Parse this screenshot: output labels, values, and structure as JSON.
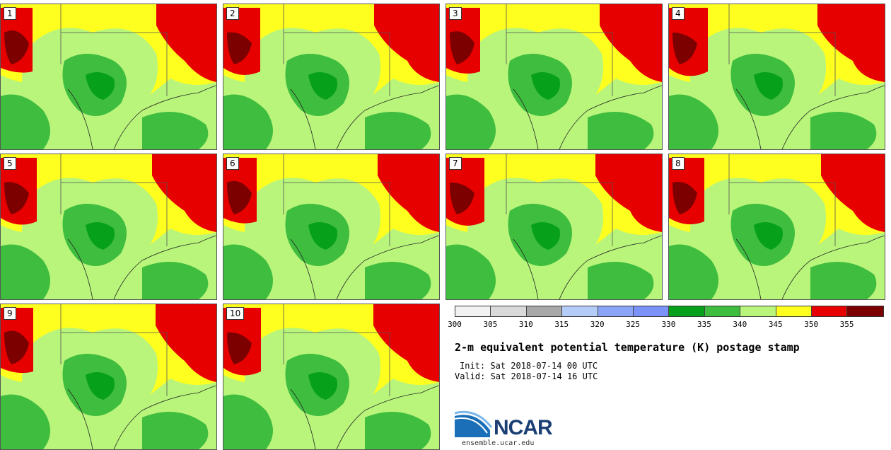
{
  "panels": [
    {
      "label": "1"
    },
    {
      "label": "2"
    },
    {
      "label": "3"
    },
    {
      "label": "4"
    },
    {
      "label": "5"
    },
    {
      "label": "6"
    },
    {
      "label": "7"
    },
    {
      "label": "8"
    },
    {
      "label": "9"
    },
    {
      "label": "10"
    }
  ],
  "colorbar": {
    "ticks": [
      "300",
      "305",
      "310",
      "315",
      "320",
      "325",
      "330",
      "335",
      "340",
      "345",
      "350",
      "355"
    ],
    "colors": [
      "#f2f2f2",
      "#d9d9d9",
      "#a8a8a8",
      "#b4ccf8",
      "#8aa4f8",
      "#7b93f8",
      "#07a01b",
      "#3fbd3f",
      "#b8f57a",
      "#ffff1f",
      "#e60000",
      "#7d0000"
    ]
  },
  "title": "2-m equivalent potential temperature (K) postage stamp",
  "init": "Init: Sat 2018-07-14 00 UTC",
  "valid": "Valid: Sat 2018-07-14 16 UTC",
  "logo": {
    "text": "NCAR",
    "url": "ensemble.ucar.edu"
  },
  "colors": {
    "red": "#e60000",
    "darkred": "#7d0000",
    "yellow": "#ffff1f",
    "lightgreen": "#b8f57a",
    "green": "#3fbd3f",
    "darkgreen": "#07a01b"
  }
}
